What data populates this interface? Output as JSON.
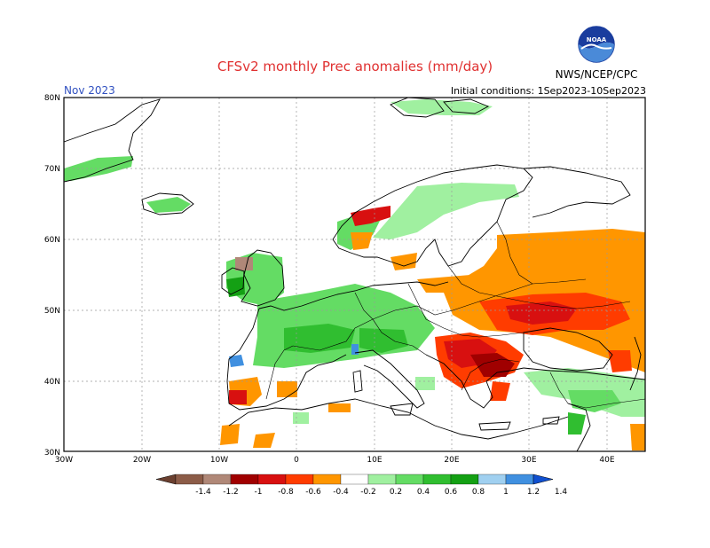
{
  "title": "CFSv2 monthly Prec anomalies (mm/day)",
  "month": "Nov 2023",
  "initial_conditions": "Initial conditions: 1Sep2023-10Sep2023",
  "agency": "NWS/NCEP/CPC",
  "logo_text": "NOAA",
  "lon_labels": [
    "30W",
    "20W",
    "10W",
    "0",
    "10E",
    "20E",
    "30E",
    "40E"
  ],
  "lat_labels": [
    "80N",
    "70N",
    "60N",
    "50N",
    "40N",
    "30N"
  ],
  "colorbar": {
    "labels": [
      "-1.4",
      "-1.2",
      "-1",
      "-0.8",
      "-0.6",
      "-0.4",
      "-0.2",
      "0.2",
      "0.4",
      "0.6",
      "0.8",
      "1",
      "1.2",
      "1.4"
    ],
    "colors": [
      "#6b4030",
      "#8c5c48",
      "#b08878",
      "#a00000",
      "#d81010",
      "#ff3c00",
      "#ff9600",
      "#ffffff",
      "#a0f0a0",
      "#64dc64",
      "#30be30",
      "#14a014",
      "#a0d0f0",
      "#4090e0",
      "#1050d0"
    ]
  },
  "colors": {
    "ocean": "#ffffff",
    "land_outline": "#000000",
    "grid": "#999999"
  }
}
